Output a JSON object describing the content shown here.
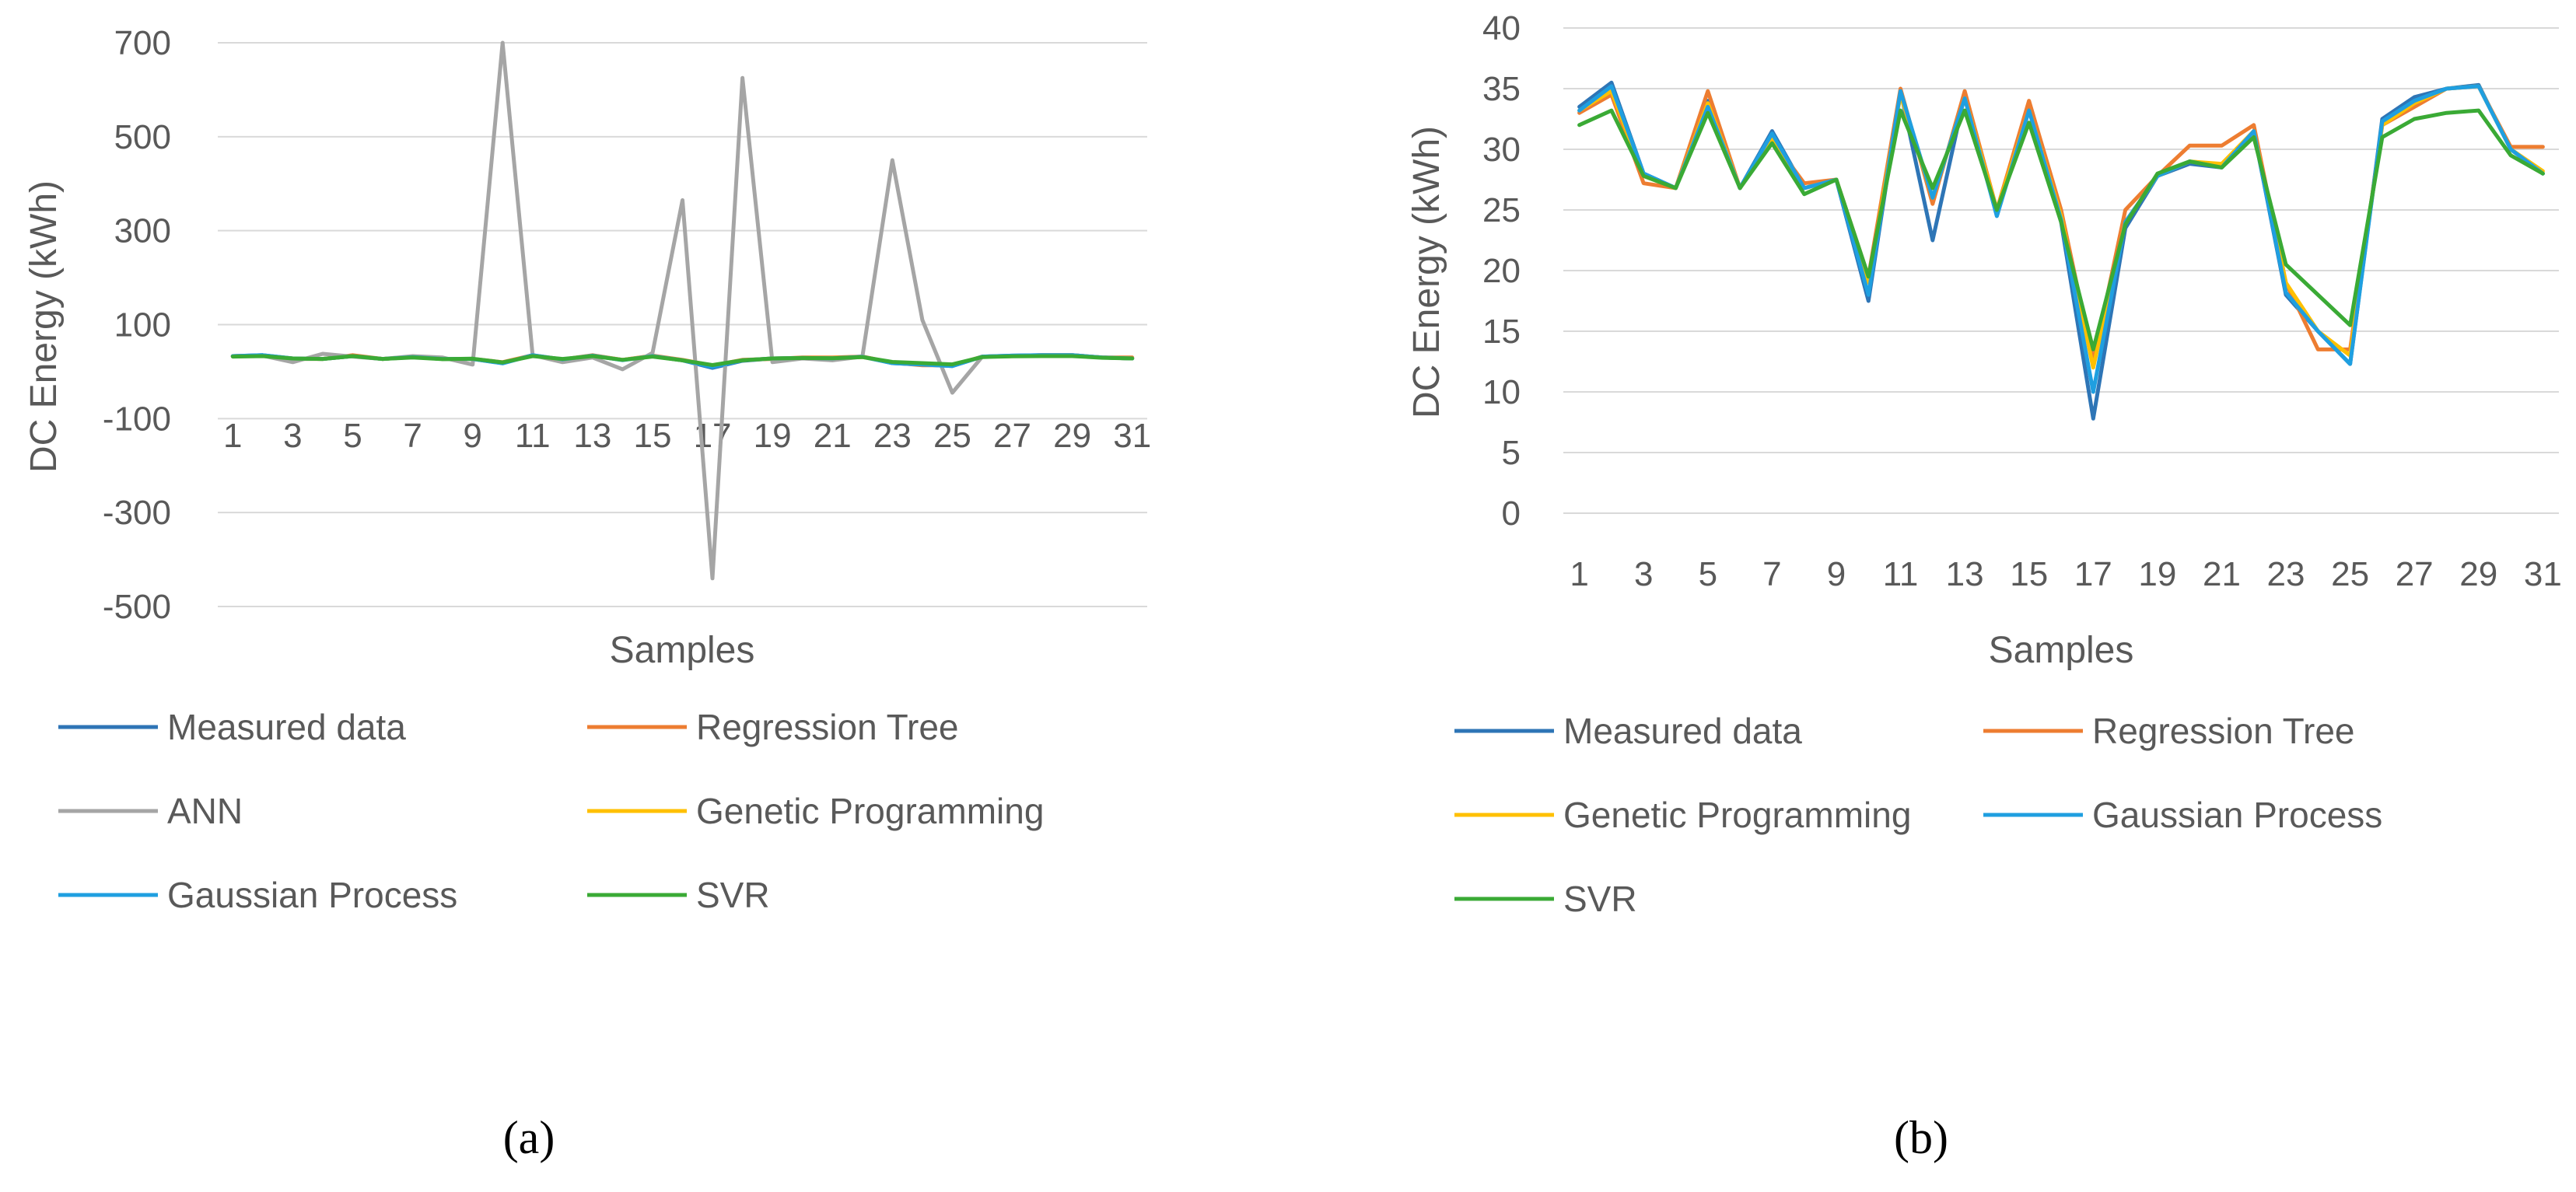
{
  "chart_data": [
    {
      "type": "line",
      "panel": "a",
      "panel_label": "(a)",
      "title": "",
      "xlabel": "Samples",
      "ylabel": "DC Energy (kWh)",
      "ylim": [
        -500,
        700
      ],
      "yticks": [
        700,
        500,
        300,
        100,
        -100,
        -300,
        -500
      ],
      "x": [
        1,
        2,
        3,
        4,
        5,
        6,
        7,
        8,
        9,
        10,
        11,
        12,
        13,
        14,
        15,
        16,
        17,
        18,
        19,
        20,
        21,
        22,
        23,
        24,
        25,
        26,
        27,
        28,
        29,
        30,
        31
      ],
      "xtick_labels": [
        "1",
        "3",
        "5",
        "7",
        "9",
        "11",
        "13",
        "15",
        "17",
        "19",
        "21",
        "23",
        "25",
        "27",
        "29",
        "31"
      ],
      "grid": true,
      "legend": "bottom",
      "series": [
        {
          "name": "Measured data",
          "color": "#2E75B6",
          "values": [
            33,
            35,
            28,
            27,
            33,
            27,
            31,
            27,
            27,
            18,
            35,
            23,
            34,
            25,
            33,
            24,
            8,
            23,
            28,
            29,
            29,
            32,
            18,
            15,
            12,
            32,
            34,
            35,
            35,
            30,
            28
          ]
        },
        {
          "name": "Regression Tree",
          "color": "#ED7D31",
          "values": [
            33,
            34,
            27,
            27,
            35,
            27,
            31,
            27,
            27,
            20,
            35,
            26,
            35,
            25,
            34,
            25,
            13,
            25,
            27,
            30,
            30,
            32,
            19,
            13.5,
            13.5,
            32,
            33,
            35,
            35,
            30,
            30
          ]
        },
        {
          "name": "ANN",
          "color": "#A5A5A5",
          "values": [
            33,
            34,
            20,
            38,
            32,
            27,
            33,
            30,
            15,
            700,
            35,
            20,
            30,
            5,
            40,
            365,
            -440,
            625,
            20,
            28,
            24,
            32,
            450,
            110,
            -45,
            32,
            33,
            34,
            34,
            30,
            28
          ]
        },
        {
          "name": "Genetic Programming",
          "color": "#FFC000",
          "values": [
            33,
            34,
            28,
            27,
            33,
            27,
            31,
            27,
            27,
            19,
            34,
            26,
            34,
            25,
            33,
            24,
            12,
            24,
            28,
            29,
            29,
            31,
            19,
            15,
            13,
            32,
            33,
            35,
            35,
            30,
            28
          ]
        },
        {
          "name": "Gaussian Process",
          "color": "#1F9FE0",
          "values": [
            33,
            35,
            28,
            27,
            33,
            27,
            31,
            27,
            27,
            17.5,
            35,
            26,
            34,
            24.5,
            33,
            24,
            10,
            24,
            28,
            29,
            28.5,
            31.5,
            18,
            15,
            12,
            32,
            34,
            35,
            35,
            30,
            28
          ]
        },
        {
          "name": "SVR",
          "color": "#3AAA35",
          "values": [
            32,
            33,
            28,
            27,
            33,
            27,
            30,
            26.5,
            27.5,
            19.5,
            33,
            27,
            33,
            25,
            32,
            24,
            14,
            24,
            28,
            29,
            28.5,
            31,
            20.5,
            18,
            15.5,
            31,
            32.5,
            33,
            33,
            29.5,
            28
          ]
        }
      ]
    },
    {
      "type": "line",
      "panel": "b",
      "panel_label": "(b)",
      "title": "",
      "xlabel": "Samples",
      "ylabel": "DC Energy (kWh)",
      "ylim": [
        0,
        40
      ],
      "yticks": [
        40,
        35,
        30,
        25,
        20,
        15,
        10,
        5,
        0
      ],
      "x": [
        1,
        2,
        3,
        4,
        5,
        6,
        7,
        8,
        9,
        10,
        11,
        12,
        13,
        14,
        15,
        16,
        17,
        18,
        19,
        20,
        21,
        22,
        23,
        24,
        25,
        26,
        27,
        28,
        29,
        30,
        31
      ],
      "xtick_labels": [
        "1",
        "3",
        "5",
        "7",
        "9",
        "11",
        "13",
        "15",
        "17",
        "19",
        "21",
        "23",
        "25",
        "27",
        "29",
        "31"
      ],
      "grid": true,
      "legend": "bottom",
      "series": [
        {
          "name": "Measured data",
          "color": "#2E75B6",
          "values": [
            33.5,
            35.5,
            28,
            26.8,
            34,
            26.8,
            31.5,
            26.8,
            27.5,
            17.5,
            34.8,
            22.5,
            34.5,
            24.5,
            33.5,
            24,
            7.8,
            23.5,
            27.8,
            28.8,
            28.5,
            31.5,
            18,
            15,
            12.3,
            32.5,
            34.3,
            35,
            35.3,
            30,
            28
          ]
        },
        {
          "name": "Regression Tree",
          "color": "#ED7D31",
          "values": [
            33,
            34.5,
            27.2,
            26.8,
            34.8,
            26.8,
            30.8,
            27.2,
            27.5,
            19.5,
            35,
            25.5,
            34.8,
            25,
            34,
            25,
            12.5,
            25,
            27.8,
            30.3,
            30.3,
            32,
            19,
            13.5,
            13.5,
            32,
            33.5,
            35,
            35.2,
            30.2,
            30.2
          ]
        },
        {
          "name": "Genetic Programming",
          "color": "#FFC000",
          "values": [
            33.2,
            34.8,
            27.8,
            26.8,
            33.8,
            26.8,
            31,
            26.8,
            27.5,
            19,
            34.5,
            26,
            34.2,
            25,
            33.2,
            24.5,
            12,
            24,
            27.8,
            29,
            28.8,
            31.5,
            19,
            15,
            13,
            32,
            33.8,
            35,
            35.2,
            30,
            28.2
          ]
        },
        {
          "name": "Gaussian Process",
          "color": "#1F9FE0",
          "values": [
            33.2,
            35.2,
            28,
            26.8,
            33.5,
            26.8,
            31.3,
            26.8,
            27.5,
            18,
            34.8,
            26,
            34.2,
            24.5,
            33.2,
            24.2,
            10,
            24,
            27.8,
            29,
            28.5,
            31.5,
            18.2,
            15,
            12.3,
            32.3,
            34,
            35,
            35.2,
            30,
            28
          ]
        },
        {
          "name": "SVR",
          "color": "#3AAA35",
          "values": [
            32,
            33.2,
            27.8,
            26.8,
            33,
            26.8,
            30.5,
            26.3,
            27.5,
            19.5,
            33.2,
            26.8,
            33.2,
            25,
            32.2,
            24,
            13.5,
            23.8,
            28,
            29,
            28.5,
            31,
            20.5,
            18,
            15.5,
            31,
            32.5,
            33,
            33.2,
            29.5,
            28
          ]
        }
      ]
    }
  ]
}
